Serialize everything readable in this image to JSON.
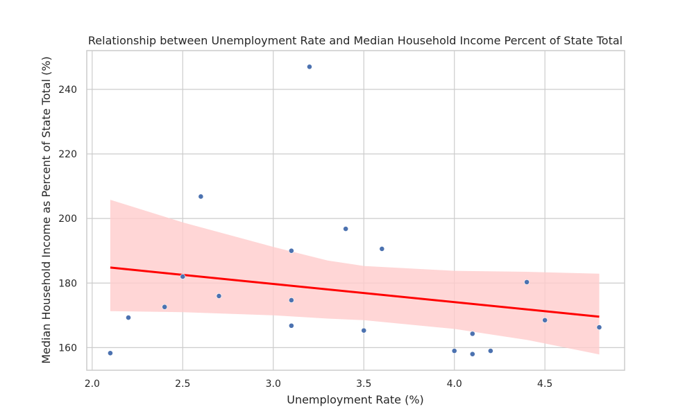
{
  "chart_data": {
    "type": "scatter",
    "title": "Relationship between Unemployment Rate and Median Household Income Percent of State Total",
    "xlabel": "Unemployment Rate (%)",
    "ylabel": "Median Household Income as Percent of State Total (%)",
    "xlim": [
      1.97,
      4.94
    ],
    "ylim": [
      153,
      252
    ],
    "xticks": [
      2.0,
      2.5,
      3.0,
      3.5,
      4.0,
      4.5
    ],
    "xtick_labels": [
      "2.0",
      "2.5",
      "3.0",
      "3.5",
      "4.0",
      "4.5"
    ],
    "yticks": [
      160,
      180,
      200,
      220,
      240
    ],
    "ytick_labels": [
      "160",
      "180",
      "200",
      "220",
      "240"
    ],
    "grid": true,
    "colors": {
      "points": "#4c72b0",
      "regression_line": "#ff0000",
      "confidence_band": "#ffcccc",
      "grid": "#cccccc",
      "background": "#ffffff"
    },
    "points": [
      {
        "x": 2.1,
        "y": 158.3
      },
      {
        "x": 2.2,
        "y": 169.3
      },
      {
        "x": 2.4,
        "y": 172.6
      },
      {
        "x": 2.5,
        "y": 182.0
      },
      {
        "x": 2.6,
        "y": 206.8
      },
      {
        "x": 2.7,
        "y": 176.0
      },
      {
        "x": 3.1,
        "y": 190.0
      },
      {
        "x": 3.1,
        "y": 174.7
      },
      {
        "x": 3.1,
        "y": 166.8
      },
      {
        "x": 3.2,
        "y": 247.0
      },
      {
        "x": 3.4,
        "y": 196.8
      },
      {
        "x": 3.5,
        "y": 165.3
      },
      {
        "x": 3.6,
        "y": 190.6
      },
      {
        "x": 4.0,
        "y": 159.0
      },
      {
        "x": 4.1,
        "y": 164.3
      },
      {
        "x": 4.1,
        "y": 158.0
      },
      {
        "x": 4.2,
        "y": 159.0
      },
      {
        "x": 4.4,
        "y": 180.3
      },
      {
        "x": 4.5,
        "y": 168.5
      },
      {
        "x": 4.8,
        "y": 166.3
      }
    ],
    "regression": {
      "x": [
        2.1,
        4.8
      ],
      "y": [
        184.8,
        169.6
      ]
    },
    "confidence_band": {
      "x": [
        2.1,
        2.5,
        3.0,
        3.3,
        3.5,
        4.0,
        4.4,
        4.8
      ],
      "upper": [
        205.8,
        198.8,
        191.2,
        187.0,
        185.3,
        183.8,
        183.5,
        182.9
      ],
      "lower": [
        171.3,
        171.0,
        170.0,
        169.0,
        168.5,
        165.8,
        162.4,
        157.9
      ]
    }
  }
}
